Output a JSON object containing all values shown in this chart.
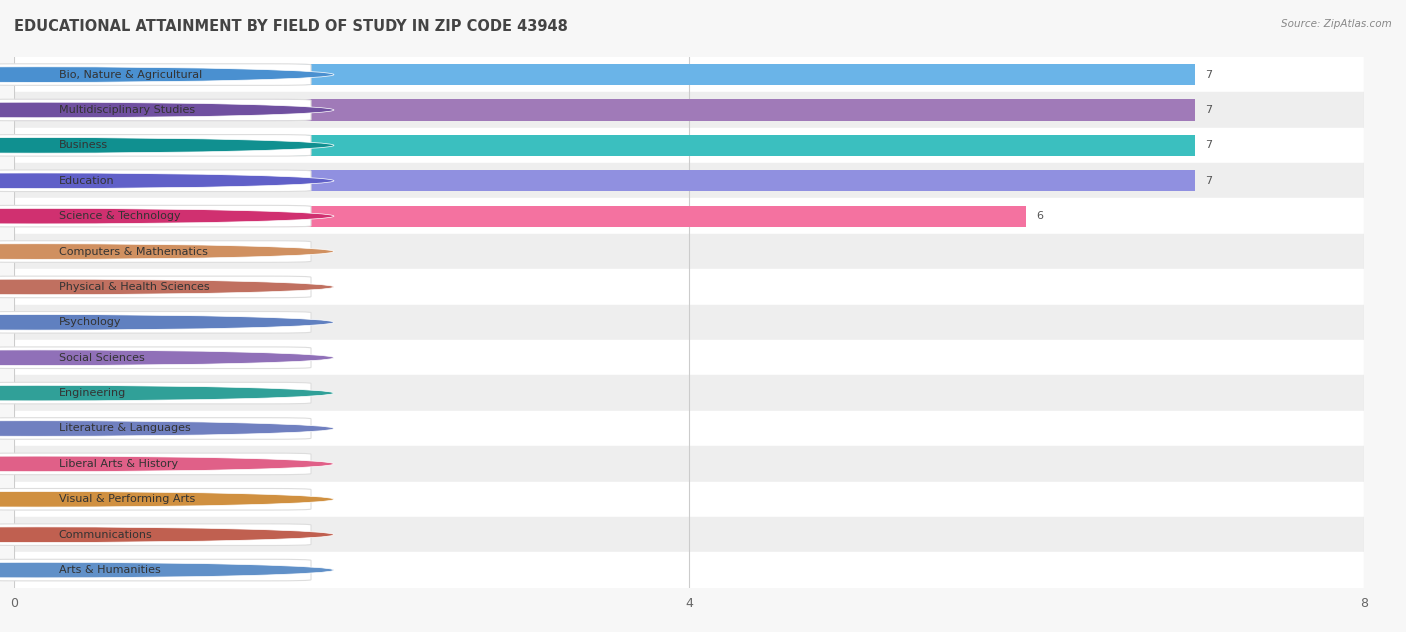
{
  "title": "EDUCATIONAL ATTAINMENT BY FIELD OF STUDY IN ZIP CODE 43948",
  "source": "Source: ZipAtlas.com",
  "categories": [
    "Bio, Nature & Agricultural",
    "Multidisciplinary Studies",
    "Business",
    "Education",
    "Science & Technology",
    "Computers & Mathematics",
    "Physical & Health Sciences",
    "Psychology",
    "Social Sciences",
    "Engineering",
    "Literature & Languages",
    "Liberal Arts & History",
    "Visual & Performing Arts",
    "Communications",
    "Arts & Humanities"
  ],
  "values": [
    7,
    7,
    7,
    7,
    6,
    0,
    0,
    0,
    0,
    0,
    0,
    0,
    0,
    0,
    0
  ],
  "bar_colors": [
    "#6ab4e8",
    "#a07ab8",
    "#3bbfbf",
    "#9090e0",
    "#f472a0",
    "#f5c98a",
    "#f0a898",
    "#a0b8e8",
    "#c8a8d8",
    "#70d0c8",
    "#a0a8e8",
    "#f898b0",
    "#f8c878",
    "#f0a090",
    "#a8c0e8"
  ],
  "dot_colors": [
    "#4a90d0",
    "#7050a0",
    "#109090",
    "#6060c8",
    "#d03070",
    "#d09060",
    "#c07060",
    "#6080c0",
    "#9070b8",
    "#30a098",
    "#7080c0",
    "#e06088",
    "#d09040",
    "#c06050",
    "#6090c8"
  ],
  "xlim": [
    0,
    8
  ],
  "xticks": [
    0,
    4,
    8
  ],
  "background_color": "#f7f7f7",
  "bar_row_bg_even": "#ffffff",
  "bar_row_bg_odd": "#eeeeee",
  "title_fontsize": 10.5,
  "label_fontsize": 8,
  "value_fontsize": 8
}
